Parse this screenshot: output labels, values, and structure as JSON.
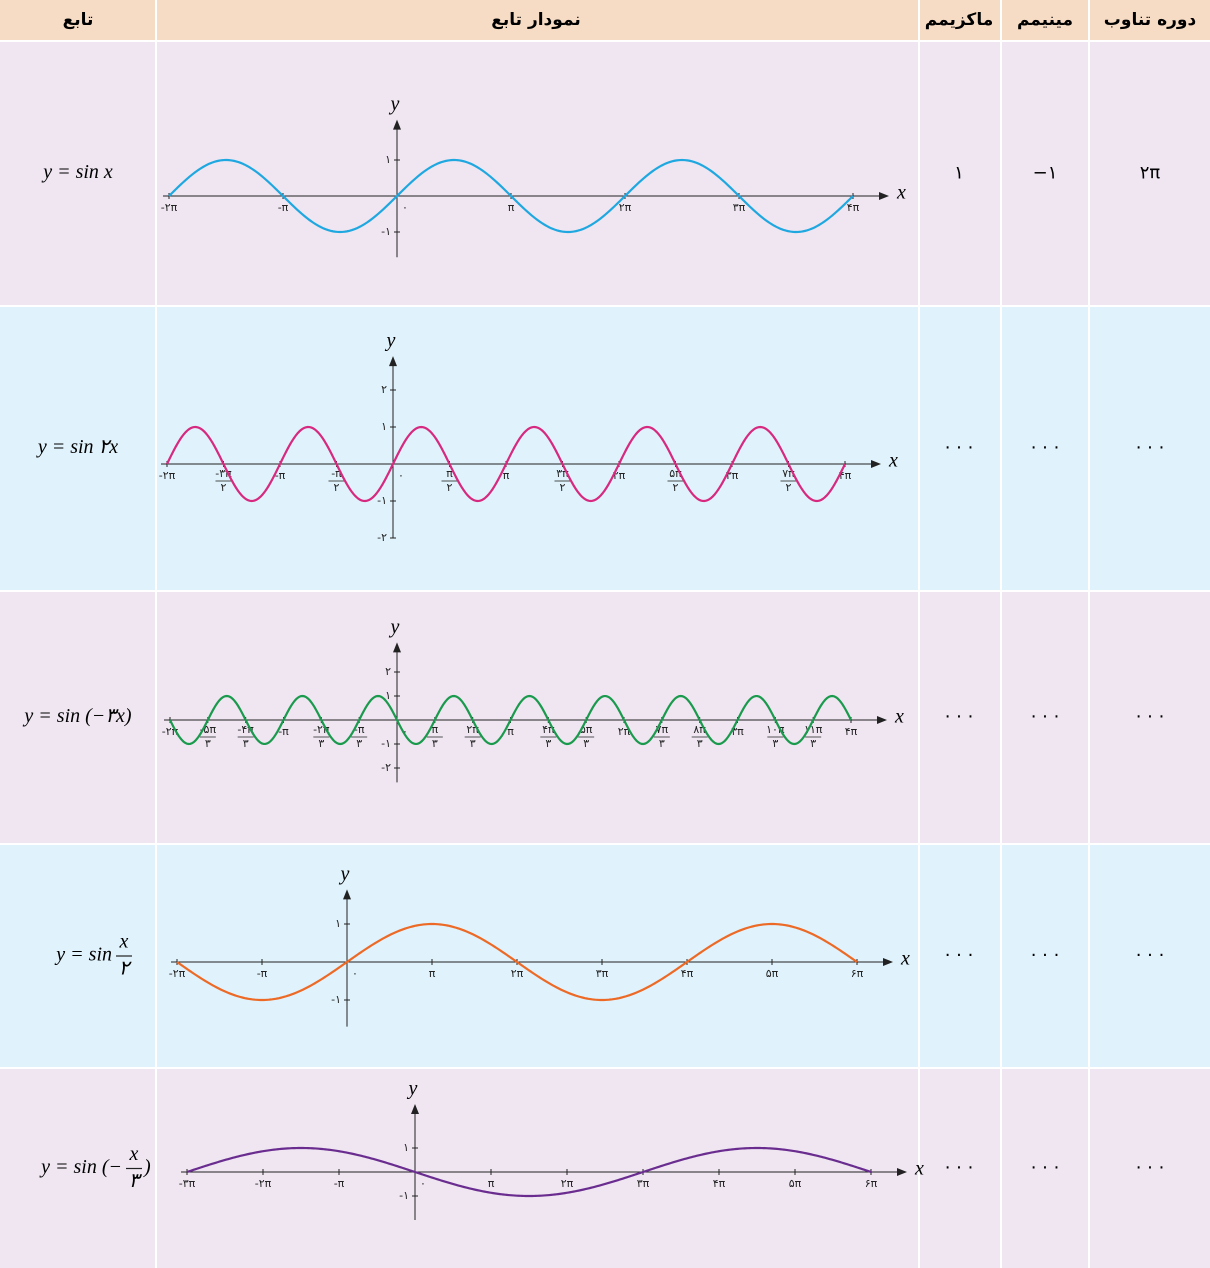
{
  "table": {
    "header": [
      "تابع",
      "نمودار تابع",
      "ماکزیمم",
      "مینیمم",
      "دوره تناوب"
    ],
    "rows": [
      {
        "function": {
          "text": "y = sin x"
        },
        "graph": {
          "color": "#1fa8e0",
          "frequency": 1,
          "xlim": [
            -2,
            4
          ],
          "ylim": [
            -1.7,
            1.9
          ],
          "x_label": "x",
          "y_label": "y",
          "xticks": [
            {
              "value": -2,
              "label": "-۲π"
            },
            {
              "value": -1,
              "label": "-π"
            },
            {
              "value": 0,
              "label": "۰"
            },
            {
              "value": 1,
              "label": "π"
            },
            {
              "value": 2,
              "label": "۲π"
            },
            {
              "value": 3,
              "label": "۳π"
            },
            {
              "value": 4,
              "label": "۴π"
            }
          ],
          "yticks": [
            {
              "value": 1,
              "label": "۱"
            },
            {
              "value": -1,
              "label": "-۱"
            }
          ]
        },
        "maximum": "۱",
        "minimum": "−۱",
        "period": "۲π"
      },
      {
        "function": {
          "text": "y = sin ۲x"
        },
        "graph": {
          "color": "#d6297f",
          "frequency": 2,
          "xlim": [
            -2,
            4
          ],
          "ylim": [
            -2,
            2.7
          ],
          "x_label": "x",
          "y_label": "y",
          "xticks": [
            {
              "value": -2,
              "label": "-۲π"
            },
            {
              "value": -1.5,
              "numerator": "-۳π",
              "denominator": "۲"
            },
            {
              "value": -1,
              "label": "-π"
            },
            {
              "value": -0.5,
              "numerator": "-π",
              "denominator": "۲"
            },
            {
              "value": 0,
              "label": "۰"
            },
            {
              "value": 0.5,
              "numerator": "π",
              "denominator": "۲"
            },
            {
              "value": 1,
              "label": "π"
            },
            {
              "value": 1.5,
              "numerator": "۳π",
              "denominator": "۲"
            },
            {
              "value": 2,
              "label": "۲π"
            },
            {
              "value": 2.5,
              "numerator": "۵π",
              "denominator": "۲"
            },
            {
              "value": 3,
              "label": "۳π"
            },
            {
              "value": 3.5,
              "numerator": "۷π",
              "denominator": "۲"
            },
            {
              "value": 4,
              "label": "۴π"
            }
          ],
          "yticks": [
            {
              "value": 2,
              "label": "۲"
            },
            {
              "value": 1,
              "label": "۱"
            },
            {
              "value": -1,
              "label": "-۱"
            },
            {
              "value": -2,
              "label": "-۲"
            }
          ]
        },
        "maximum": "· · ·",
        "minimum": "· · ·",
        "period": "· · ·"
      },
      {
        "function": {
          "text": "y = sin (−۳x)"
        },
        "graph": {
          "color": "#1a9a4c",
          "frequency": -3,
          "xlim": [
            -2,
            4
          ],
          "ylim": [
            -2.6,
            2.9
          ],
          "x_label": "x",
          "y_label": "y",
          "xticks": [
            {
              "value": -2,
              "label": "-۲π"
            },
            {
              "value": -1.6667,
              "numerator": "-۵π",
              "denominator": "۳"
            },
            {
              "value": -1.3333,
              "numerator": "-۴π",
              "denominator": "۳"
            },
            {
              "value": -1,
              "label": "-π"
            },
            {
              "value": -0.6667,
              "numerator": "-۲π",
              "denominator": "۳"
            },
            {
              "value": -0.3333,
              "numerator": "-π",
              "denominator": "۳"
            },
            {
              "value": 0,
              "label": "۰"
            },
            {
              "value": 0.3333,
              "numerator": "π",
              "denominator": "۳"
            },
            {
              "value": 0.6667,
              "numerator": "۲π",
              "denominator": "۳"
            },
            {
              "value": 1,
              "label": "π"
            },
            {
              "value": 1.3333,
              "numerator": "۴π",
              "denominator": "۳"
            },
            {
              "value": 1.6667,
              "numerator": "۵π",
              "denominator": "۳"
            },
            {
              "value": 2,
              "label": "۲π"
            },
            {
              "value": 2.3333,
              "numerator": "۷π",
              "denominator": "۳"
            },
            {
              "value": 2.6667,
              "numerator": "۸π",
              "denominator": "۳"
            },
            {
              "value": 3,
              "label": "۳π"
            },
            {
              "value": 3.3333,
              "numerator": "۱۰π",
              "denominator": "۳"
            },
            {
              "value": 3.6667,
              "numerator": "۱۱π",
              "denominator": "۳"
            },
            {
              "value": 4,
              "label": "۴π"
            }
          ],
          "yticks": [
            {
              "value": 2,
              "label": "۲"
            },
            {
              "value": 1,
              "label": "۱"
            },
            {
              "value": -1,
              "label": "-۱"
            },
            {
              "value": -2,
              "label": "-۲"
            }
          ]
        },
        "maximum": "· · ·",
        "minimum": "· · ·",
        "period": "· · ·"
      },
      {
        "function": {
          "text": "y = sin",
          "numerator": "x",
          "denominator": "۲"
        },
        "graph": {
          "color": "#ec6a26",
          "frequency": 0.5,
          "xlim": [
            -2,
            6
          ],
          "ylim": [
            -1.7,
            1.7
          ],
          "x_label": "x",
          "y_label": "y",
          "xticks": [
            {
              "value": -2,
              "label": "-۲π"
            },
            {
              "value": -1,
              "label": "-π"
            },
            {
              "value": 0,
              "label": "۰"
            },
            {
              "value": 1,
              "label": "π"
            },
            {
              "value": 2,
              "label": "۲π"
            },
            {
              "value": 3,
              "label": "۳π"
            },
            {
              "value": 4,
              "label": "۴π"
            },
            {
              "value": 5,
              "label": "۵π"
            },
            {
              "value": 6,
              "label": "۶π"
            }
          ],
          "yticks": [
            {
              "value": 1,
              "label": "۱"
            },
            {
              "value": -1,
              "label": "-۱"
            }
          ]
        },
        "maximum": "· · ·",
        "minimum": "· · ·",
        "period": "· · ·"
      },
      {
        "function": {
          "text": "y = sin (−",
          "numerator": "x",
          "denominator": "۳",
          "suffix": ")"
        },
        "graph": {
          "color": "#6a2d8f",
          "frequency": -0.3333,
          "xlim": [
            -3,
            6
          ],
          "ylim": [
            -2,
            2.5
          ],
          "x_label": "x",
          "y_label": "y",
          "xticks": [
            {
              "value": -3,
              "label": "-۳π"
            },
            {
              "value": -2,
              "label": "-۲π"
            },
            {
              "value": -1,
              "label": "-π"
            },
            {
              "value": 0,
              "label": "۰"
            },
            {
              "value": 1,
              "label": "π"
            },
            {
              "value": 2,
              "label": "۲π"
            },
            {
              "value": 3,
              "label": "۳π"
            },
            {
              "value": 4,
              "label": "۴π"
            },
            {
              "value": 5,
              "label": "۵π"
            },
            {
              "value": 6,
              "label": "۶π"
            }
          ],
          "yticks": [
            {
              "value": 1,
              "label": "۱"
            },
            {
              "value": -1,
              "label": "-۱"
            }
          ]
        },
        "maximum": "· · ·",
        "minimum": "· · ·",
        "period": "· · ·"
      }
    ]
  }
}
